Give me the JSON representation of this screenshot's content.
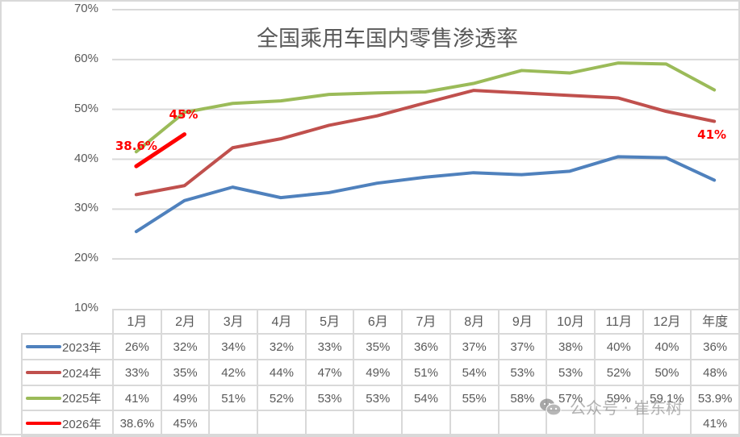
{
  "chart_data": {
    "type": "line",
    "title": "全国乘用车国内零售渗透率",
    "xlabel": "",
    "ylabel": "",
    "ylim": [
      0.1,
      0.7
    ],
    "yticks": [
      "10%",
      "20%",
      "30%",
      "40%",
      "50%",
      "60%",
      "70%"
    ],
    "grid": true,
    "legend_position": "data-table",
    "categories": [
      "1月",
      "2月",
      "3月",
      "4月",
      "5月",
      "6月",
      "7月",
      "8月",
      "9月",
      "10月",
      "11月",
      "12月",
      "年度"
    ],
    "series": [
      {
        "name": "2023年",
        "color": "#4f81bd",
        "values": [
          0.255,
          0.317,
          0.344,
          0.323,
          0.333,
          0.352,
          0.364,
          0.373,
          0.369,
          0.376,
          0.405,
          0.403,
          0.358
        ],
        "table_labels": [
          "26%",
          "32%",
          "34%",
          "32%",
          "33%",
          "35%",
          "36%",
          "37%",
          "37%",
          "38%",
          "40%",
          "40%",
          "36%"
        ]
      },
      {
        "name": "2024年",
        "color": "#c0504d",
        "values": [
          0.329,
          0.347,
          0.423,
          0.441,
          0.468,
          0.487,
          0.513,
          0.538,
          0.533,
          0.528,
          0.523,
          0.496,
          0.476
        ],
        "table_labels": [
          "33%",
          "35%",
          "42%",
          "44%",
          "47%",
          "49%",
          "51%",
          "54%",
          "53%",
          "53%",
          "52%",
          "50%",
          "48%"
        ]
      },
      {
        "name": "2025年",
        "color": "#9bbb59",
        "values": [
          0.415,
          0.494,
          0.512,
          0.517,
          0.53,
          0.533,
          0.535,
          0.552,
          0.578,
          0.573,
          0.593,
          0.591,
          0.539
        ],
        "table_labels": [
          "41%",
          "49%",
          "51%",
          "52%",
          "53%",
          "53%",
          "54%",
          "55%",
          "58%",
          "57%",
          "59%",
          "59.1%",
          "53.9%"
        ]
      },
      {
        "name": "2026年",
        "color": "#ff0000",
        "values": [
          0.386,
          0.45,
          null,
          null,
          null,
          null,
          null,
          null,
          null,
          null,
          null,
          null,
          0.41
        ],
        "table_labels": [
          "38.6%",
          "45%",
          "",
          "",
          "",
          "",
          "",
          "",
          "",
          "",
          "",
          "",
          "41%"
        ]
      }
    ],
    "annotations": [
      {
        "text": "38.6%",
        "series": "2026年",
        "category": "1月",
        "color": "#ff0000"
      },
      {
        "text": "45%",
        "series": "2026年",
        "category": "2月",
        "color": "#ff0000"
      },
      {
        "text": "41%",
        "series": "2026年",
        "category": "年度",
        "color": "#ff0000"
      }
    ]
  },
  "watermark": {
    "text": "公众号 · 崔东树"
  }
}
